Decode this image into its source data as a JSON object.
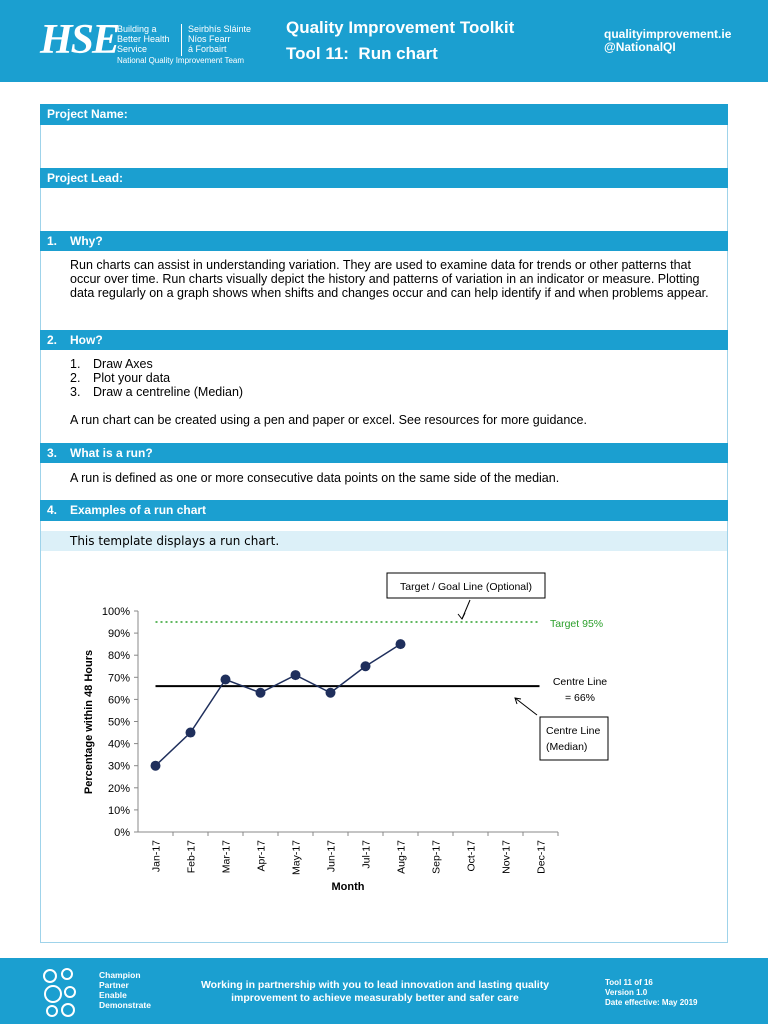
{
  "header": {
    "logo": "HSE",
    "org_en": [
      "Building a",
      "Better Health",
      "Service"
    ],
    "org_ga": [
      "Seirbhís Sláinte",
      "Níos Fearr",
      "á Forbairt"
    ],
    "team": "National Quality Improvement Team",
    "title": "Quality Improvement Toolkit",
    "subtitle": "Tool 11:  Run chart",
    "website": "qualityimprovement.ie",
    "twitter": "@NationalQI"
  },
  "project_name": "Project Name:",
  "project_lead": "Project Lead:",
  "why": {
    "number": "1.",
    "title": "Why?",
    "text": "Run charts can assist in understanding variation.  They are used to examine data for trends or other patterns that occur over time.  Run charts visually depict the history and patterns of variation in an indicator or measure.  Plotting data regularly on a graph shows when shifts and changes occur and can help identify if and when problems appear."
  },
  "how": {
    "number": "2.",
    "title": "How?",
    "steps": [
      {
        "number": "1.",
        "text": "Draw Axes"
      },
      {
        "number": "2.",
        "text": "Plot your data"
      },
      {
        "number": "3.",
        "text": "Draw a centreline (Median)"
      }
    ],
    "text": "A run chart can be created using a pen and paper or excel. See resources for more guidance."
  },
  "run": {
    "number": "3.",
    "title": "What is a run?",
    "text": "A run is defined as one or more consecutive data points on the same side of the median."
  },
  "examples": {
    "number": "4.",
    "title": "Examples of a run chart",
    "note": "This template displays a run chart."
  },
  "chart_data": {
    "type": "line",
    "x_label": "Month",
    "y_label": "Percentage within 48 Hours",
    "categories": [
      "Jan-17",
      "Feb-17",
      "Mar-17",
      "Apr-17",
      "May-17",
      "Jun-17",
      "Jul-17",
      "Aug-17",
      "Sep-17",
      "Oct-17",
      "Nov-17",
      "Dec-17"
    ],
    "series": [
      {
        "name": "Percentage",
        "color": "#1f2f5c",
        "values": [
          30,
          45,
          69,
          63,
          71,
          63,
          75,
          85,
          null,
          null,
          null,
          null
        ]
      }
    ],
    "ylim": [
      0,
      100
    ],
    "yticks": [
      {
        "value": 0,
        "label": "0%"
      },
      {
        "value": 10,
        "label": "10%"
      },
      {
        "value": 20,
        "label": "20%"
      },
      {
        "value": 30,
        "label": "30%"
      },
      {
        "value": 40,
        "label": "40%"
      },
      {
        "value": 50,
        "label": "50%"
      },
      {
        "value": 60,
        "label": "60%"
      },
      {
        "value": 70,
        "label": "70%"
      },
      {
        "value": 80,
        "label": "80%"
      },
      {
        "value": 90,
        "label": "90%"
      },
      {
        "value": 100,
        "label": "100%"
      }
    ],
    "target": 95,
    "target_color": "#2ca02c",
    "centre_line": 66,
    "centre_color": "#000000",
    "target_label": "Target 95%",
    "target_box": "Target / Goal Line (Optional)",
    "centre_label": [
      "Centre Line",
      "= 66%"
    ],
    "median_box": [
      "Centre Line",
      "(Median)"
    ]
  },
  "footer": {
    "values": [
      "Champion",
      "Partner",
      "Enable",
      "Demonstrate"
    ],
    "tagline": [
      "Working in partnership with you to lead innovation and lasting quality",
      "improvement to achieve measurably better and safer care"
    ],
    "doc_info": [
      "Tool 11 of 16",
      "Version 1.0",
      "Date effective: May 2019"
    ]
  }
}
